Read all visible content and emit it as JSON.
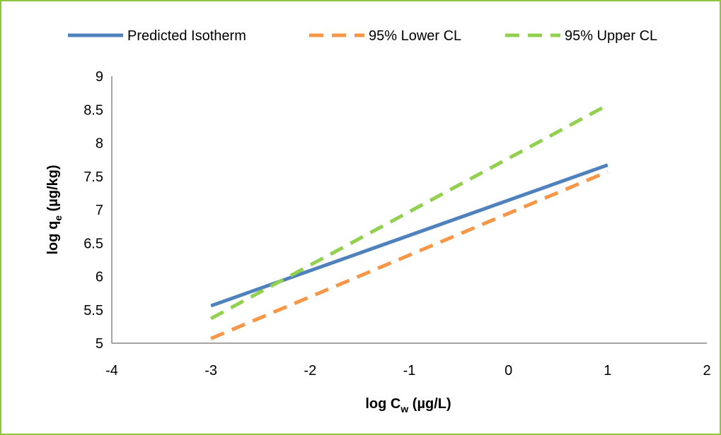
{
  "chart_data": {
    "type": "line",
    "xlabel": {
      "main": "log C",
      "sub": "w",
      "unit": "  (µg/L)"
    },
    "ylabel": {
      "main": "log q",
      "sub": "e",
      "unit": " (µg/kg)"
    },
    "xlim": [
      -4,
      2
    ],
    "ylim": [
      5,
      9
    ],
    "xticks": [
      -4,
      -3,
      -2,
      -1,
      0,
      1,
      2
    ],
    "yticks": [
      5,
      5.5,
      6,
      6.5,
      7,
      7.5,
      8,
      8.5,
      9
    ],
    "grid": false,
    "legend_position": "top",
    "series": [
      {
        "name": "Predicted Isotherm",
        "color": "#4f81bd",
        "style": "solid",
        "x": [
          -3,
          1
        ],
        "y": [
          5.56,
          7.67
        ]
      },
      {
        "name": "95% Lower CL",
        "color": "#f79646",
        "style": "dashed",
        "x": [
          -3,
          1
        ],
        "y": [
          5.07,
          7.57
        ]
      },
      {
        "name": "95% Upper CL",
        "color": "#92d050",
        "style": "dashed",
        "x": [
          -3,
          1
        ],
        "y": [
          5.37,
          8.57
        ]
      }
    ]
  }
}
